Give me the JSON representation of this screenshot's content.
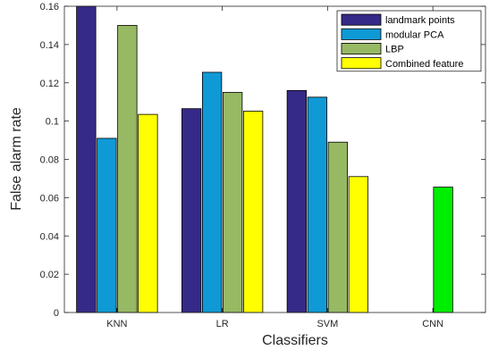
{
  "chart_data": {
    "type": "bar",
    "categories": [
      "KNN",
      "LR",
      "SVM",
      "CNN"
    ],
    "series": [
      {
        "name": "landmark points",
        "color": "#352a87",
        "values": [
          0.16,
          0.1065,
          0.116,
          0
        ]
      },
      {
        "name": "modular PCA",
        "color": "#0f9ad6",
        "values": [
          0.091,
          0.1255,
          0.1125,
          null
        ]
      },
      {
        "name": "LBP",
        "color": "#97b964",
        "values": [
          0.15,
          0.115,
          0.089,
          null
        ]
      },
      {
        "name": "Combined feature",
        "color": "#ffff00",
        "values": [
          0.1035,
          0.1052,
          0.071,
          null
        ]
      }
    ],
    "extra_bars": [
      {
        "category": "CNN",
        "value": 0.0655,
        "color": "#00ee00"
      }
    ],
    "xlabel": "Classifiers",
    "ylabel": "False alarm rate",
    "ylim": [
      0,
      0.16
    ],
    "yticks": [
      "0",
      "0.02",
      "0.04",
      "0.06",
      "0.08",
      "0.1",
      "0.12",
      "0.14",
      "0.16"
    ],
    "legend_position": "top-right",
    "grid": false
  }
}
